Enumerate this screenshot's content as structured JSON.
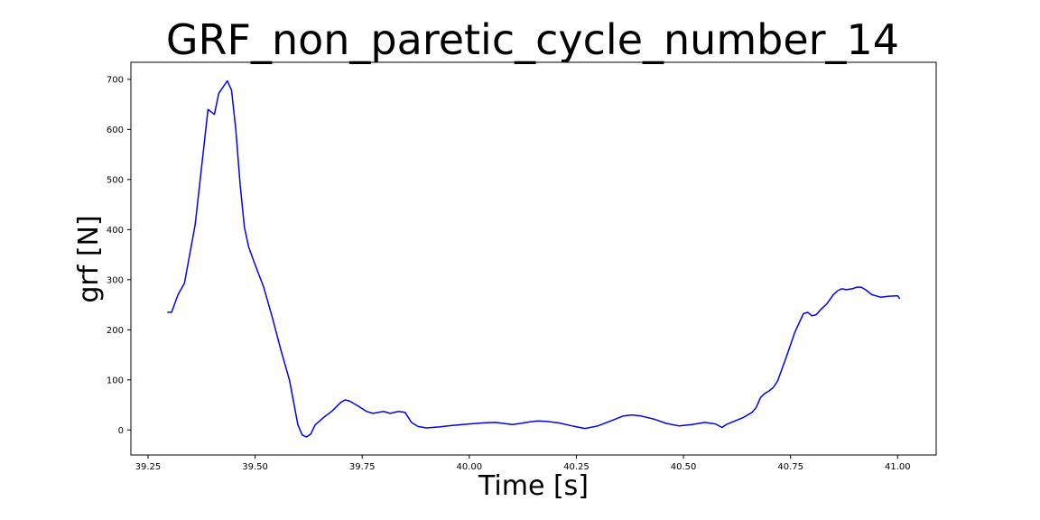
{
  "chart_data": {
    "type": "line",
    "title": "GRF_non_paretic_cycle_number_14",
    "xlabel": "Time [s]",
    "ylabel": "grf [N]",
    "xlim": [
      39.21,
      41.09
    ],
    "ylim": [
      -50,
      734
    ],
    "xticks": [
      39.25,
      39.5,
      39.75,
      40.0,
      40.25,
      40.5,
      40.75,
      41.0
    ],
    "xtick_labels": [
      "39.25",
      "39.50",
      "39.75",
      "40.00",
      "40.25",
      "40.50",
      "40.75",
      "41.00"
    ],
    "yticks": [
      0,
      100,
      200,
      300,
      400,
      500,
      600,
      700
    ],
    "ytick_labels": [
      "0",
      "100",
      "200",
      "300",
      "400",
      "500",
      "600",
      "700"
    ],
    "grid": false,
    "line_color": "#0000ff",
    "series": [
      {
        "x": [
          39.295,
          39.305,
          39.32,
          39.335,
          39.36,
          39.39,
          39.405,
          39.415,
          39.435,
          39.445,
          39.455,
          39.465,
          39.475,
          39.485,
          39.5,
          39.52,
          39.54,
          39.56,
          39.57,
          39.58,
          39.59,
          39.6,
          39.61,
          39.62,
          39.63,
          39.64,
          39.66,
          39.68,
          39.7,
          39.71,
          39.72,
          39.74,
          39.76,
          39.775,
          39.8,
          39.815,
          39.835,
          39.85,
          39.865,
          39.88,
          39.9,
          39.93,
          39.96,
          40.0,
          40.03,
          40.06,
          40.08,
          40.1,
          40.12,
          40.14,
          40.16,
          40.18,
          40.21,
          40.24,
          40.27,
          40.3,
          40.33,
          40.36,
          40.38,
          40.4,
          40.43,
          40.46,
          40.49,
          40.52,
          40.55,
          40.575,
          40.59,
          40.6,
          40.62,
          40.64,
          40.66,
          40.67,
          40.68,
          40.69,
          40.7,
          40.71,
          40.72,
          40.74,
          40.76,
          40.78,
          40.79,
          40.8,
          40.81,
          40.82,
          40.835,
          40.85,
          40.86,
          40.87,
          40.88,
          40.895,
          40.905,
          40.915,
          40.925,
          40.94,
          40.96,
          40.98,
          41.0,
          41.005
        ],
        "y": [
          235,
          235,
          270,
          293,
          410,
          640,
          630,
          672,
          697,
          678,
          600,
          490,
          405,
          365,
          330,
          285,
          225,
          160,
          130,
          100,
          55,
          10,
          -10,
          -14,
          -8,
          10,
          25,
          38,
          55,
          60,
          58,
          48,
          37,
          33,
          37,
          33,
          37,
          35,
          15,
          7,
          4,
          6,
          9,
          12,
          14,
          15,
          13,
          11,
          13,
          16,
          18,
          17,
          14,
          8,
          3,
          8,
          18,
          28,
          30,
          28,
          22,
          13,
          8,
          11,
          15,
          12,
          5,
          11,
          18,
          25,
          35,
          45,
          65,
          73,
          78,
          85,
          98,
          145,
          195,
          232,
          235,
          228,
          230,
          240,
          252,
          270,
          278,
          282,
          280,
          282,
          285,
          285,
          280,
          270,
          265,
          267,
          268,
          262
        ]
      }
    ]
  }
}
